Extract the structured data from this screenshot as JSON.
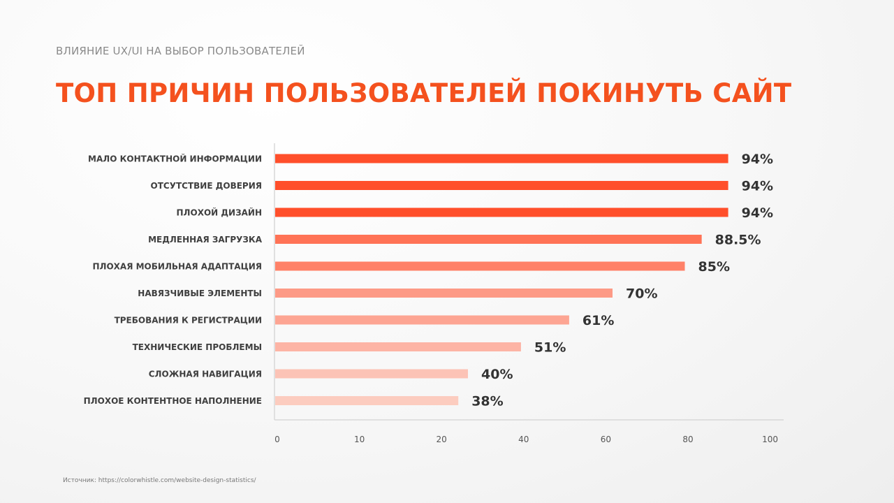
{
  "header": {
    "subtitle": "ВЛИЯНИЕ UX/UI НА ВЫБОР ПОЛЬЗОВАТЕЛЕЙ",
    "title": "ТОП ПРИЧИН ПОЛЬЗОВАТЕЛЕЙ ПОКИНУТЬ САЙТ"
  },
  "source": "Источник: https://colorwhistle.com/website-design-statistics/",
  "chart_data": {
    "type": "bar",
    "orientation": "horizontal",
    "categories": [
      "МАЛО КОНТАКТНОЙ ИНФОРМАЦИИ",
      "ОТСУТСТВИЕ ДОВЕРИЯ",
      "ПЛОХОЙ ДИЗАЙН",
      "МЕДЛЕННАЯ ЗАГРУЗКА",
      "ПЛОХАЯ МОБИЛЬНАЯ АДАПТАЦИЯ",
      "НАВЯЗЧИВЫЕ ЭЛЕМЕНТЫ",
      "ТРЕБОВАНИЯ К РЕГИСТРАЦИИ",
      "ТЕХНИЧЕСКИЕ ПРОБЛЕМЫ",
      "СЛОЖНАЯ НАВИГАЦИЯ",
      "ПЛОХОЕ КОНТЕНТНОЕ НАПОЛНЕНИЕ"
    ],
    "values": [
      94,
      94,
      94,
      88.5,
      85,
      70,
      61,
      51,
      40,
      38
    ],
    "data_labels": [
      "94%",
      "94%",
      "94%",
      "88.5%",
      "85%",
      "70%",
      "61%",
      "51%",
      "40%",
      "38%"
    ],
    "colors": [
      "#ff4f2b",
      "#ff4f2b",
      "#ff4f2b",
      "#ff7356",
      "#ff8168",
      "#fd9a86",
      "#fda593",
      "#fdb4a5",
      "#fcc3b6",
      "#fcccbf"
    ],
    "xticks": [
      "0",
      "10",
      "20",
      "40",
      "60",
      "80",
      "100"
    ],
    "xlim": [
      0,
      100
    ],
    "grid": false
  }
}
